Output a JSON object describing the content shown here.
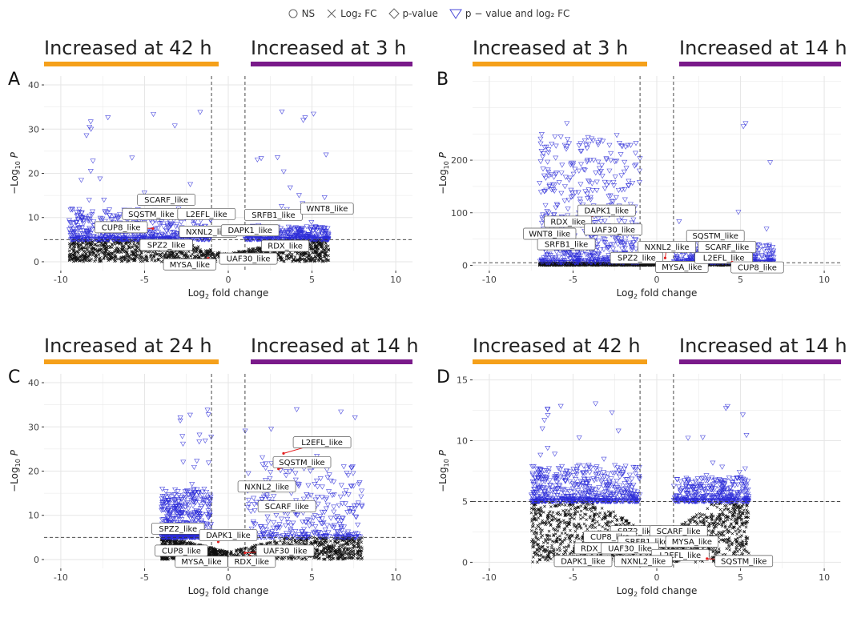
{
  "legend": {
    "items": [
      {
        "label": "NS",
        "icon": "circle-icon"
      },
      {
        "label": "Log₂ FC",
        "icon": "cross-icon"
      },
      {
        "label": "p-value",
        "icon": "diamond-icon"
      },
      {
        "label": "p − value and log₂ FC",
        "icon": "triangle-down-icon"
      }
    ]
  },
  "colors": {
    "orange": "#F5A01A",
    "purple": "#7A1A8A",
    "blue": "#2B2BD8",
    "red": "#E32020",
    "grid": "#E6E6E6",
    "black": "#111111"
  },
  "axis_text": {
    "xlabel_prefix": "Log",
    "xlabel_sub": "2",
    "xlabel_suffix": " fold change",
    "ylabel_prefix": "−Log",
    "ylabel_sub": "10",
    "ylabel_suffix": " P"
  },
  "chart_data": [
    {
      "panel": "A",
      "type": "scatter",
      "left_band": "Increased at 42 h",
      "right_band": "Increased at 3 h",
      "xlim": [
        -11,
        11
      ],
      "ylim": [
        -2,
        42
      ],
      "xticks": [
        -10,
        -5,
        0,
        5,
        10
      ],
      "yticks": [
        0,
        10,
        20,
        30,
        40
      ],
      "fc_cutoff": 1,
      "p_cutoff": 5,
      "cloud": {
        "left_max": 12,
        "right_max": 8,
        "spread_left": 9.5,
        "spread_right": 6
      },
      "labels": [
        {
          "text": "SCARF_like",
          "x": -3.6,
          "y": 15.0,
          "lx": -3.7,
          "ly": 14.0
        },
        {
          "text": "SQSTM_like",
          "x": -3.0,
          "y": 11.0,
          "lx": -4.6,
          "ly": 10.8
        },
        {
          "text": "L2EFL_like",
          "x": -2.6,
          "y": 10.5,
          "lx": -1.3,
          "ly": 10.8
        },
        {
          "text": "CUP8_like",
          "x": -4.5,
          "y": 7.5,
          "lx": -6.4,
          "ly": 7.8
        },
        {
          "text": "NXNL2_like",
          "x": -2.5,
          "y": 7.5,
          "lx": -1.2,
          "ly": 6.8
        },
        {
          "text": "SPZ2_like",
          "x": -2.5,
          "y": 4.0,
          "lx": -3.7,
          "ly": 3.8
        },
        {
          "text": "MYSA_like",
          "x": -1.2,
          "y": 0.8,
          "lx": -2.3,
          "ly": -0.6
        },
        {
          "text": "SRFB1_like",
          "x": 3.2,
          "y": 9.8,
          "lx": 2.7,
          "ly": 10.6
        },
        {
          "text": "WNT8_like",
          "x": 4.7,
          "y": 11.0,
          "lx": 5.9,
          "ly": 12.0
        },
        {
          "text": "DAPK1_like",
          "x": 1.8,
          "y": 7.5,
          "lx": 1.3,
          "ly": 7.1
        },
        {
          "text": "RDX_like",
          "x": 3.5,
          "y": 4.5,
          "lx": 3.4,
          "ly": 3.6
        },
        {
          "text": "UAF30_like",
          "x": 1.2,
          "y": 1.5,
          "lx": 1.2,
          "ly": 0.7
        }
      ]
    },
    {
      "panel": "B",
      "type": "scatter",
      "left_band": "Increased at 3 h",
      "right_band": "Increased at 14 h",
      "xlim": [
        -11,
        11
      ],
      "ylim": [
        -10,
        360
      ],
      "xticks": [
        -10,
        -5,
        0,
        5,
        10
      ],
      "yticks": [
        0,
        100,
        200
      ],
      "fc_cutoff": 1,
      "p_cutoff": 5,
      "cloud": {
        "left_max": 250,
        "right_max": 40,
        "spread_left": 7,
        "spread_right": 7
      },
      "labels": [
        {
          "text": "DAPK1_like",
          "x": -4.2,
          "y": 88,
          "lx": -3.0,
          "ly": 104
        },
        {
          "text": "RDX_like",
          "x": -4.2,
          "y": 76,
          "lx": -5.3,
          "ly": 83
        },
        {
          "text": "UAF30_like",
          "x": -3.6,
          "y": 62,
          "lx": -2.6,
          "ly": 68
        },
        {
          "text": "WNT8_like",
          "x": -5.0,
          "y": 50,
          "lx": -6.4,
          "ly": 60
        },
        {
          "text": "SRFB1_like",
          "x": -4.6,
          "y": 35,
          "lx": -5.4,
          "ly": 40
        },
        {
          "text": "NXNL2_like",
          "x": 0.5,
          "y": 14,
          "lx": 0.6,
          "ly": 35
        },
        {
          "text": "SPZ2_like",
          "x": -0.7,
          "y": 8,
          "lx": -1.2,
          "ly": 14
        },
        {
          "text": "MYSA_like",
          "x": 1.2,
          "y": 4,
          "lx": 1.5,
          "ly": -3
        },
        {
          "text": "SQSTM_like",
          "x": 3.3,
          "y": 30,
          "lx": 3.5,
          "ly": 56
        },
        {
          "text": "SCARF_like",
          "x": 3.6,
          "y": 22,
          "lx": 4.2,
          "ly": 35
        },
        {
          "text": "L2EFL_like",
          "x": 2.8,
          "y": 12,
          "lx": 4.0,
          "ly": 14
        },
        {
          "text": "CUP8_like",
          "x": 4.5,
          "y": 6,
          "lx": 6.0,
          "ly": -4
        }
      ]
    },
    {
      "panel": "C",
      "type": "scatter",
      "left_band": "Increased at 24 h",
      "right_band": "Increased at 14 h",
      "xlim": [
        -11,
        11
      ],
      "ylim": [
        -2,
        42
      ],
      "xticks": [
        -10,
        -5,
        0,
        5,
        10
      ],
      "yticks": [
        0,
        10,
        20,
        30,
        40
      ],
      "fc_cutoff": 1,
      "p_cutoff": 5,
      "cloud": {
        "left_max": 16,
        "right_max": 22,
        "spread_left": 4,
        "spread_right": 8
      },
      "labels": [
        {
          "text": "L2EFL_like",
          "x": 3.3,
          "y": 24.0,
          "lx": 5.6,
          "ly": 26.5
        },
        {
          "text": "SQSTM_like",
          "x": 3.0,
          "y": 20.5,
          "lx": 4.4,
          "ly": 22.0
        },
        {
          "text": "NXNL2_like",
          "x": 2.5,
          "y": 17.5,
          "lx": 2.3,
          "ly": 16.5
        },
        {
          "text": "SCARF_like",
          "x": 3.5,
          "y": 11.0,
          "lx": 3.5,
          "ly": 12.0
        },
        {
          "text": "SPZ2_like",
          "x": -1.8,
          "y": 6.5,
          "lx": -3.0,
          "ly": 7.0
        },
        {
          "text": "DAPK1_like",
          "x": -0.6,
          "y": 4.0,
          "lx": 0.0,
          "ly": 5.5
        },
        {
          "text": "CUP8_like",
          "x": -1.3,
          "y": 2.0,
          "lx": -2.8,
          "ly": 2.0
        },
        {
          "text": "UAF30_like",
          "x": 1.0,
          "y": 1.5,
          "lx": 3.4,
          "ly": 2.0
        },
        {
          "text": "MYSA_like",
          "x": -0.6,
          "y": 0.3,
          "lx": -1.6,
          "ly": -0.5
        },
        {
          "text": "RDX_like",
          "x": 1.3,
          "y": 0.8,
          "lx": 1.4,
          "ly": -0.5
        }
      ]
    },
    {
      "panel": "D",
      "type": "scatter",
      "left_band": "Increased at 42 h",
      "right_band": "Increased at 14 h",
      "xlim": [
        -11,
        11
      ],
      "ylim": [
        -0.5,
        15.5
      ],
      "xticks": [
        -10,
        -5,
        0,
        5,
        10
      ],
      "yticks": [
        0,
        5,
        10,
        15
      ],
      "fc_cutoff": 1,
      "p_cutoff": 5,
      "cloud": {
        "left_max": 8,
        "right_max": 7,
        "spread_left": 7.5,
        "spread_right": 5.5
      },
      "labels": [
        {
          "text": "SPZ2_like",
          "x": -1.0,
          "y": 2.2,
          "lx": -1.2,
          "ly": 2.55
        },
        {
          "text": "SCARF_like",
          "x": 1.0,
          "y": 2.2,
          "lx": 1.3,
          "ly": 2.55
        },
        {
          "text": "CUP8_like",
          "x": -2.0,
          "y": 1.9,
          "lx": -2.8,
          "ly": 2.1
        },
        {
          "text": "SRFB1_like",
          "x": -0.9,
          "y": 1.5,
          "lx": -0.6,
          "ly": 1.7
        },
        {
          "text": "MYSA_like",
          "x": 1.0,
          "y": 1.5,
          "lx": 2.1,
          "ly": 1.7
        },
        {
          "text": "RDX_like",
          "x": -2.6,
          "y": 1.1,
          "lx": -3.5,
          "ly": 1.15
        },
        {
          "text": "UAF30_like",
          "x": -1.2,
          "y": 1.1,
          "lx": -1.6,
          "ly": 1.15
        },
        {
          "text": "L2EFL_like",
          "x": 0.3,
          "y": 0.5,
          "lx": 1.4,
          "ly": 0.6
        },
        {
          "text": "DAPK1_like",
          "x": -3.0,
          "y": 0.3,
          "lx": -4.4,
          "ly": 0.1
        },
        {
          "text": "NXNL2_like",
          "x": -1.0,
          "y": 0.3,
          "lx": -0.8,
          "ly": 0.1
        },
        {
          "text": "SQSTM_like",
          "x": 3.0,
          "y": 0.3,
          "lx": 5.2,
          "ly": 0.1
        }
      ]
    }
  ]
}
